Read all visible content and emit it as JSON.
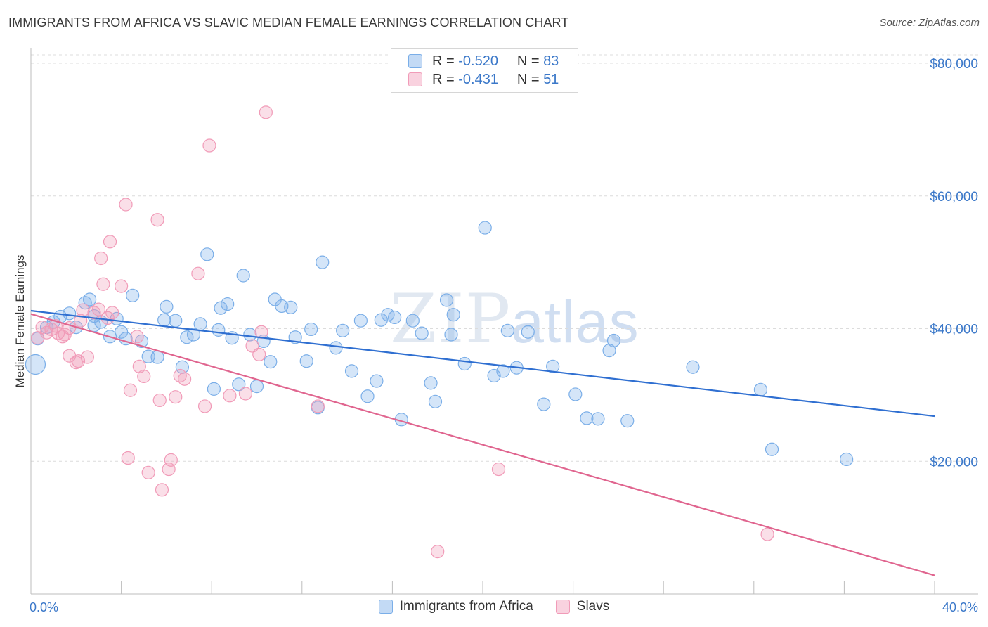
{
  "title": "IMMIGRANTS FROM AFRICA VS SLAVIC MEDIAN FEMALE EARNINGS CORRELATION CHART",
  "source": "Source: ZipAtlas.com",
  "watermark": {
    "part1": "ZIP",
    "part2": "atlas"
  },
  "legend": {
    "rows": [
      {
        "r_label": "R =",
        "r_value": "-0.520",
        "n_label": "N =",
        "n_value": "83",
        "color": "#7aaee8"
      },
      {
        "r_label": "R =",
        "r_value": "-0.431",
        "n_label": "N =",
        "n_value": "51",
        "color": "#f19bb8"
      }
    ]
  },
  "bottom_legend": [
    "Immigrants from Africa",
    "Slavs"
  ],
  "chart_data": {
    "type": "scatter",
    "ylabel": "Median Female Earnings",
    "xlim": [
      0,
      40
    ],
    "ylim": [
      0,
      80000
    ],
    "x_tick_labels": [
      "0.0%",
      "40.0%"
    ],
    "y_ticks": [
      20000,
      40000,
      60000,
      80000
    ],
    "y_tick_labels": [
      "$20,000",
      "$40,000",
      "$60,000",
      "$80,000"
    ],
    "grid": true,
    "legend_position": "top-center",
    "series": [
      {
        "name": "Immigrants from Africa",
        "color": "#7aaee8",
        "trend": {
          "x0": 0,
          "y0": 42700,
          "x1": 40,
          "y1": 26800
        },
        "points": [
          [
            0.2,
            34600
          ],
          [
            0.3,
            38500
          ],
          [
            0.7,
            40200
          ],
          [
            1.0,
            41000
          ],
          [
            1.3,
            41800
          ],
          [
            1.7,
            42300
          ],
          [
            2.0,
            40200
          ],
          [
            2.4,
            43900
          ],
          [
            2.6,
            44400
          ],
          [
            2.8,
            40500
          ],
          [
            3.1,
            41000
          ],
          [
            3.5,
            38800
          ],
          [
            3.8,
            41500
          ],
          [
            4.0,
            39500
          ],
          [
            4.2,
            38500
          ],
          [
            4.5,
            45000
          ],
          [
            4.9,
            38100
          ],
          [
            5.2,
            35800
          ],
          [
            5.6,
            35700
          ],
          [
            5.9,
            41300
          ],
          [
            6.0,
            43300
          ],
          [
            6.4,
            41200
          ],
          [
            6.7,
            34200
          ],
          [
            6.9,
            38700
          ],
          [
            7.2,
            39100
          ],
          [
            7.5,
            40700
          ],
          [
            7.8,
            51200
          ],
          [
            8.1,
            30900
          ],
          [
            8.4,
            43100
          ],
          [
            8.7,
            43700
          ],
          [
            8.9,
            38600
          ],
          [
            9.2,
            31600
          ],
          [
            9.4,
            48000
          ],
          [
            9.7,
            39100
          ],
          [
            10.0,
            31300
          ],
          [
            10.3,
            38100
          ],
          [
            10.6,
            35000
          ],
          [
            10.8,
            44400
          ],
          [
            11.1,
            43400
          ],
          [
            11.5,
            43200
          ],
          [
            11.7,
            38700
          ],
          [
            12.2,
            35100
          ],
          [
            12.4,
            39900
          ],
          [
            12.7,
            28100
          ],
          [
            12.9,
            50000
          ],
          [
            13.5,
            37100
          ],
          [
            13.8,
            39700
          ],
          [
            14.2,
            33600
          ],
          [
            14.6,
            41200
          ],
          [
            14.9,
            29800
          ],
          [
            15.3,
            32100
          ],
          [
            15.5,
            41300
          ],
          [
            15.8,
            42100
          ],
          [
            16.1,
            41700
          ],
          [
            16.4,
            26300
          ],
          [
            16.9,
            41200
          ],
          [
            17.3,
            39300
          ],
          [
            17.7,
            31800
          ],
          [
            17.9,
            29000
          ],
          [
            18.4,
            44300
          ],
          [
            18.6,
            39100
          ],
          [
            18.7,
            42100
          ],
          [
            19.2,
            34700
          ],
          [
            20.1,
            55200
          ],
          [
            20.5,
            32900
          ],
          [
            20.9,
            33600
          ],
          [
            21.1,
            39700
          ],
          [
            21.5,
            34100
          ],
          [
            22.0,
            39500
          ],
          [
            22.7,
            28600
          ],
          [
            23.1,
            34300
          ],
          [
            24.1,
            30100
          ],
          [
            24.6,
            26500
          ],
          [
            25.1,
            26400
          ],
          [
            25.6,
            36700
          ],
          [
            25.8,
            38200
          ],
          [
            26.4,
            26100
          ],
          [
            29.3,
            34200
          ],
          [
            32.3,
            30800
          ],
          [
            32.8,
            21800
          ],
          [
            36.1,
            20300
          ],
          [
            2.8,
            41900
          ],
          [
            8.3,
            39800
          ]
        ]
      },
      {
        "name": "Slavs",
        "color": "#f19bb8",
        "trend": {
          "x0": 0,
          "y0": 42200,
          "x1": 40,
          "y1": 2800
        },
        "points": [
          [
            0.3,
            38600
          ],
          [
            0.5,
            40200
          ],
          [
            0.7,
            39400
          ],
          [
            0.9,
            39900
          ],
          [
            1.1,
            40400
          ],
          [
            1.4,
            38800
          ],
          [
            1.7,
            40100
          ],
          [
            1.7,
            35900
          ],
          [
            2.0,
            34900
          ],
          [
            2.1,
            35100
          ],
          [
            2.3,
            42800
          ],
          [
            2.5,
            35700
          ],
          [
            2.8,
            42400
          ],
          [
            3.1,
            50600
          ],
          [
            3.2,
            46700
          ],
          [
            3.4,
            41600
          ],
          [
            3.5,
            53100
          ],
          [
            3.6,
            42400
          ],
          [
            4.0,
            46400
          ],
          [
            4.2,
            58700
          ],
          [
            4.3,
            20500
          ],
          [
            4.4,
            30700
          ],
          [
            4.7,
            38800
          ],
          [
            4.8,
            34300
          ],
          [
            5.0,
            32800
          ],
          [
            5.2,
            18300
          ],
          [
            5.6,
            56400
          ],
          [
            5.7,
            29200
          ],
          [
            5.8,
            15700
          ],
          [
            6.1,
            18800
          ],
          [
            6.2,
            20200
          ],
          [
            6.4,
            29700
          ],
          [
            6.6,
            32900
          ],
          [
            6.8,
            32400
          ],
          [
            7.4,
            48300
          ],
          [
            7.7,
            28300
          ],
          [
            7.9,
            67600
          ],
          [
            8.8,
            29900
          ],
          [
            9.5,
            30200
          ],
          [
            9.8,
            37400
          ],
          [
            10.1,
            36100
          ],
          [
            10.2,
            39500
          ],
          [
            10.4,
            72600
          ],
          [
            12.7,
            28300
          ],
          [
            18.0,
            6400
          ],
          [
            20.7,
            18800
          ],
          [
            32.6,
            9000
          ],
          [
            3.0,
            42900
          ],
          [
            1.5,
            39100
          ],
          [
            1.2,
            39300
          ],
          [
            2.2,
            41200
          ]
        ]
      }
    ]
  }
}
